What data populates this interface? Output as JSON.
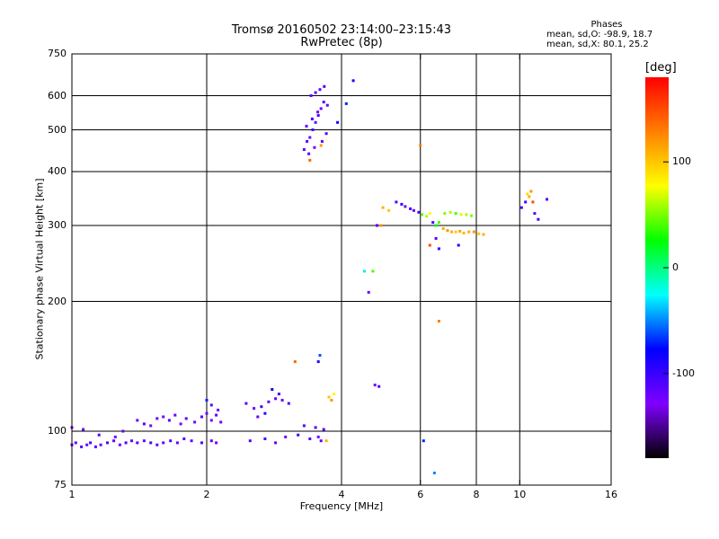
{
  "chart_data": {
    "type": "scatter",
    "title": "Tromsø 20160502 23:14:00–23:15:43",
    "subtitle": "RwPretec (8p)",
    "stats": {
      "heading": "Phases",
      "line1": "mean, sd,O: -98.9, 18.7",
      "line2": "mean, sd,X:  80.1, 25.2"
    },
    "xlabel": "Frequency [MHz]",
    "ylabel": "Stationary phase Virtual Height [km]",
    "x_scale": "log",
    "y_scale": "log",
    "xlim": [
      1,
      16
    ],
    "ylim": [
      75,
      750
    ],
    "x_ticks": [
      {
        "value": 1,
        "label": "1"
      },
      {
        "value": 2,
        "label": "2"
      },
      {
        "value": 4,
        "label": "4"
      },
      {
        "value": 6,
        "label": "6"
      },
      {
        "value": 8,
        "label": "8"
      },
      {
        "value": 10,
        "label": "10"
      },
      {
        "value": 16,
        "label": "16"
      }
    ],
    "y_ticks": [
      {
        "value": 75,
        "label": "75"
      },
      {
        "value": 100,
        "label": "100"
      },
      {
        "value": 200,
        "label": "200"
      },
      {
        "value": 300,
        "label": "300"
      },
      {
        "value": 400,
        "label": "400"
      },
      {
        "value": 500,
        "label": "500"
      },
      {
        "value": 600,
        "label": "600"
      },
      {
        "value": 750,
        "label": "750"
      }
    ],
    "x_gridlines": [
      2,
      4,
      6,
      8,
      10
    ],
    "y_gridlines": [
      100,
      200,
      300,
      400,
      500,
      600
    ],
    "grid": true,
    "colorbar": {
      "label": "[deg]",
      "range": [
        -180,
        180
      ],
      "ticks": [
        {
          "value": 100,
          "label": "100"
        },
        {
          "value": 0,
          "label": "0"
        },
        {
          "value": -100,
          "label": "-100"
        }
      ],
      "stops": [
        "#000000",
        "#8000ff",
        "#0000ff",
        "#00ffff",
        "#00ff00",
        "#ffff00",
        "#ff8000",
        "#ff0000"
      ]
    },
    "series": [
      {
        "points": [
          [
            1.0,
            93,
            -115
          ],
          [
            1.02,
            94,
            -118
          ],
          [
            1.05,
            92,
            -110
          ],
          [
            1.08,
            93,
            -120
          ],
          [
            1.1,
            94,
            -105
          ],
          [
            1.13,
            92,
            -112
          ],
          [
            1.16,
            93,
            -118
          ],
          [
            1.2,
            94,
            -108
          ],
          [
            1.24,
            95,
            -115
          ],
          [
            1.28,
            93,
            -122
          ],
          [
            1.32,
            94,
            -110
          ],
          [
            1.36,
            95,
            -118
          ],
          [
            1.4,
            94,
            -112
          ],
          [
            1.45,
            95,
            -120
          ],
          [
            1.5,
            94,
            -108
          ],
          [
            1.55,
            93,
            -115
          ],
          [
            1.6,
            94,
            -118
          ],
          [
            1.66,
            95,
            -110
          ],
          [
            1.72,
            94,
            -120
          ],
          [
            1.78,
            96,
            -112
          ],
          [
            1.85,
            95,
            -118
          ],
          [
            1.95,
            94,
            -110
          ],
          [
            2.05,
            95,
            -115
          ],
          [
            2.1,
            94,
            -120
          ],
          [
            1.0,
            102,
            -120
          ],
          [
            1.06,
            101,
            -118
          ],
          [
            1.15,
            98,
            -110
          ],
          [
            1.25,
            97,
            -125
          ],
          [
            1.3,
            100,
            -115
          ],
          [
            1.4,
            106,
            -120
          ],
          [
            1.45,
            104,
            -110
          ],
          [
            1.5,
            103,
            -125
          ],
          [
            1.55,
            107,
            -118
          ],
          [
            1.6,
            108,
            -122
          ],
          [
            1.65,
            106,
            -110
          ],
          [
            1.7,
            109,
            -120
          ],
          [
            1.75,
            104,
            -130
          ],
          [
            1.8,
            107,
            -115
          ],
          [
            1.88,
            105,
            -122
          ],
          [
            1.95,
            108,
            -110
          ],
          [
            2.0,
            110,
            -118
          ],
          [
            2.05,
            106,
            -125
          ],
          [
            2.1,
            109,
            -112
          ],
          [
            2.15,
            105,
            -120
          ],
          [
            2.05,
            115,
            -115
          ],
          [
            2.12,
            112,
            -120
          ],
          [
            2.0,
            118,
            -70
          ],
          [
            2.45,
            116,
            -110
          ],
          [
            2.55,
            113,
            -120
          ],
          [
            2.65,
            114,
            -100
          ],
          [
            2.75,
            117,
            -115
          ],
          [
            2.85,
            119,
            -112
          ],
          [
            2.95,
            118,
            -120
          ],
          [
            3.05,
            116,
            -108
          ],
          [
            2.9,
            122,
            -100
          ],
          [
            2.8,
            125,
            -80
          ],
          [
            2.6,
            108,
            -118
          ],
          [
            2.7,
            110,
            -90
          ],
          [
            2.5,
            95,
            -110
          ],
          [
            2.7,
            96,
            -105
          ],
          [
            2.85,
            94,
            -112
          ],
          [
            3.0,
            97,
            -118
          ],
          [
            3.2,
            98,
            -100
          ],
          [
            3.4,
            96,
            -110
          ],
          [
            3.55,
            97,
            -120
          ],
          [
            3.6,
            95,
            -118
          ],
          [
            3.3,
            103,
            -112
          ],
          [
            3.5,
            102,
            -108
          ],
          [
            3.65,
            101,
            -115
          ],
          [
            3.15,
            145,
            140
          ],
          [
            3.55,
            145,
            -90
          ],
          [
            3.58,
            150,
            -60
          ],
          [
            3.75,
            120,
            100
          ],
          [
            3.8,
            118,
            120
          ],
          [
            3.85,
            122,
            80
          ],
          [
            3.7,
            95,
            110
          ],
          [
            3.3,
            450,
            -115
          ],
          [
            3.35,
            470,
            -110
          ],
          [
            3.4,
            480,
            -120
          ],
          [
            3.45,
            500,
            -105
          ],
          [
            3.5,
            520,
            -118
          ],
          [
            3.55,
            540,
            -112
          ],
          [
            3.6,
            560,
            -120
          ],
          [
            3.65,
            580,
            -108
          ],
          [
            3.42,
            600,
            -115
          ],
          [
            3.5,
            610,
            -110
          ],
          [
            3.58,
            620,
            -118
          ],
          [
            3.66,
            630,
            -105
          ],
          [
            3.38,
            440,
            -112
          ],
          [
            3.48,
            455,
            -120
          ],
          [
            3.62,
            470,
            -115
          ],
          [
            3.7,
            490,
            -110
          ],
          [
            3.34,
            510,
            -118
          ],
          [
            3.44,
            530,
            -100
          ],
          [
            3.54,
            550,
            -122
          ],
          [
            3.72,
            570,
            -112
          ],
          [
            3.4,
            425,
            140
          ],
          [
            3.6,
            460,
            120
          ],
          [
            3.92,
            520,
            -80
          ],
          [
            4.1,
            575,
            -70
          ],
          [
            4.25,
            650,
            -85
          ],
          [
            4.5,
            235,
            -30
          ],
          [
            4.6,
            210,
            -120
          ],
          [
            4.7,
            235,
            40
          ],
          [
            4.8,
            300,
            -110
          ],
          [
            4.9,
            300,
            120
          ],
          [
            4.75,
            128,
            -120
          ],
          [
            4.85,
            127,
            -110
          ],
          [
            4.95,
            330,
            110
          ],
          [
            5.1,
            325,
            100
          ],
          [
            5.3,
            340,
            -110
          ],
          [
            5.45,
            336,
            -100
          ],
          [
            5.55,
            332,
            -120
          ],
          [
            5.7,
            328,
            -105
          ],
          [
            5.8,
            325,
            -115
          ],
          [
            5.95,
            322,
            -110
          ],
          [
            6.05,
            318,
            40
          ],
          [
            6.2,
            315,
            60
          ],
          [
            6.3,
            320,
            80
          ],
          [
            6.4,
            305,
            -110
          ],
          [
            6.5,
            300,
            20
          ],
          [
            6.6,
            305,
            40
          ],
          [
            6.75,
            295,
            110
          ],
          [
            6.9,
            292,
            120
          ],
          [
            7.05,
            290,
            110
          ],
          [
            7.2,
            290,
            100
          ],
          [
            7.35,
            291,
            115
          ],
          [
            7.5,
            288,
            105
          ],
          [
            7.7,
            290,
            110
          ],
          [
            7.9,
            290,
            120
          ],
          [
            8.1,
            287,
            100
          ],
          [
            8.3,
            286,
            110
          ],
          [
            6.8,
            320,
            50
          ],
          [
            7.0,
            322,
            60
          ],
          [
            7.2,
            320,
            40
          ],
          [
            7.4,
            318,
            70
          ],
          [
            7.6,
            318,
            60
          ],
          [
            7.8,
            316,
            50
          ],
          [
            6.3,
            270,
            150
          ],
          [
            6.5,
            280,
            -110
          ],
          [
            6.6,
            265,
            -100
          ],
          [
            7.3,
            270,
            -90
          ],
          [
            6.0,
            460,
            130
          ],
          [
            6.6,
            180,
            130
          ],
          [
            6.1,
            95,
            -70
          ],
          [
            6.45,
            80,
            -50
          ],
          [
            10.1,
            330,
            -110
          ],
          [
            10.3,
            340,
            -100
          ],
          [
            10.5,
            350,
            110
          ],
          [
            10.6,
            360,
            120
          ],
          [
            10.7,
            340,
            150
          ],
          [
            10.8,
            320,
            -110
          ],
          [
            11.0,
            310,
            -100
          ],
          [
            11.5,
            345,
            -110
          ],
          [
            10.4,
            355,
            90
          ]
        ]
      }
    ]
  }
}
